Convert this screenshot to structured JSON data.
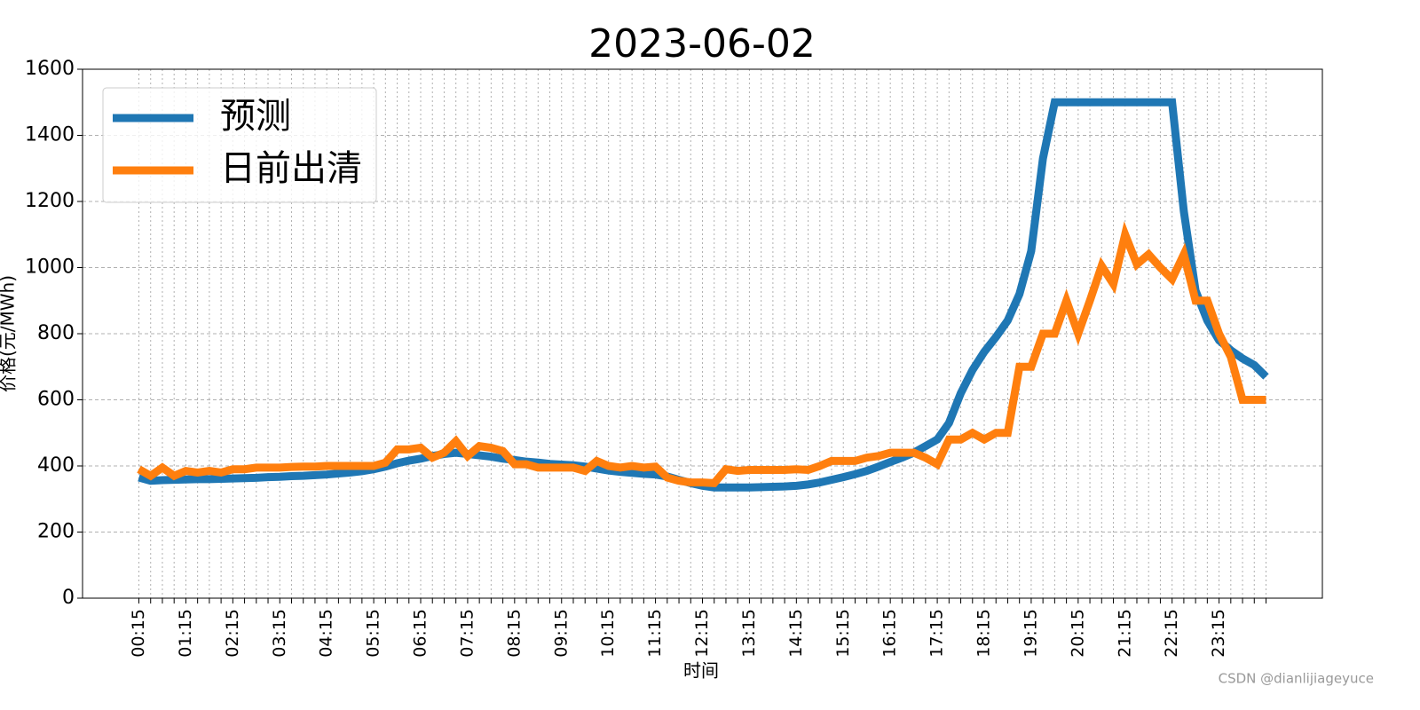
{
  "chart_data": {
    "type": "line",
    "title": "2023-06-02",
    "xlabel": "时间",
    "ylabel": "价格(元/MWh)",
    "watermark": "CSDN @dianlijiageyuce",
    "categories": [
      "00:15",
      null,
      null,
      null,
      "01:15",
      null,
      null,
      null,
      "02:15",
      null,
      null,
      null,
      "03:15",
      null,
      null,
      null,
      "04:15",
      null,
      null,
      null,
      "05:15",
      null,
      null,
      null,
      "06:15",
      null,
      null,
      null,
      "07:15",
      null,
      null,
      null,
      "08:15",
      null,
      null,
      null,
      "09:15",
      null,
      null,
      null,
      "10:15",
      null,
      null,
      null,
      "11:15",
      null,
      null,
      null,
      "12:15",
      null,
      null,
      null,
      "13:15",
      null,
      null,
      null,
      "14:15",
      null,
      null,
      null,
      "15:15",
      null,
      null,
      null,
      "16:15",
      null,
      null,
      null,
      "17:15",
      null,
      null,
      null,
      "18:15",
      null,
      null,
      null,
      "19:15",
      null,
      null,
      null,
      "20:15",
      null,
      null,
      null,
      "21:15",
      null,
      null,
      null,
      "22:15",
      null,
      null,
      null,
      "23:15",
      null,
      null,
      null,
      null
    ],
    "series": [
      {
        "name": "预测",
        "color": "#1f77b4",
        "values": [
          365,
          355,
          357,
          358,
          359,
          360,
          360,
          361,
          362,
          363,
          364,
          366,
          367,
          369,
          370,
          372,
          374,
          377,
          380,
          384,
          390,
          398,
          408,
          416,
          422,
          430,
          436,
          440,
          436,
          432,
          428,
          422,
          418,
          413,
          410,
          406,
          404,
          402,
          398,
          392,
          386,
          382,
          379,
          376,
          374,
          368,
          358,
          348,
          340,
          335,
          335,
          335,
          335,
          336,
          337,
          338,
          340,
          344,
          350,
          358,
          366,
          375,
          385,
          398,
          412,
          425,
          440,
          460,
          480,
          530,
          620,
          690,
          745,
          790,
          840,
          920,
          1050,
          1330,
          1500,
          1500,
          1500,
          1500,
          1500,
          1500,
          1500,
          1500,
          1500,
          1500,
          1500,
          1170,
          930,
          840,
          780,
          750,
          725,
          705,
          670
        ]
      },
      {
        "name": "日前出清",
        "color": "#ff7f0e",
        "values": [
          390,
          370,
          395,
          370,
          385,
          380,
          385,
          380,
          390,
          390,
          395,
          395,
          395,
          397,
          398,
          398,
          400,
          400,
          400,
          400,
          400,
          410,
          450,
          450,
          455,
          425,
          440,
          475,
          430,
          460,
          455,
          445,
          405,
          405,
          395,
          395,
          395,
          395,
          385,
          415,
          400,
          395,
          400,
          395,
          398,
          365,
          355,
          350,
          350,
          348,
          390,
          385,
          388,
          388,
          388,
          388,
          390,
          388,
          400,
          415,
          415,
          415,
          425,
          430,
          440,
          440,
          440,
          425,
          405,
          480,
          480,
          500,
          480,
          500,
          500,
          700,
          700,
          800,
          800,
          900,
          800,
          900,
          1005,
          950,
          1100,
          1010,
          1040,
          1000,
          965,
          1040,
          900,
          900,
          800,
          730,
          600,
          600,
          600
        ]
      }
    ],
    "ylim": [
      0,
      1600
    ],
    "yticks": [
      0,
      200,
      400,
      600,
      800,
      1000,
      1200,
      1400,
      1600
    ],
    "grid": true,
    "legend": "upper left"
  }
}
